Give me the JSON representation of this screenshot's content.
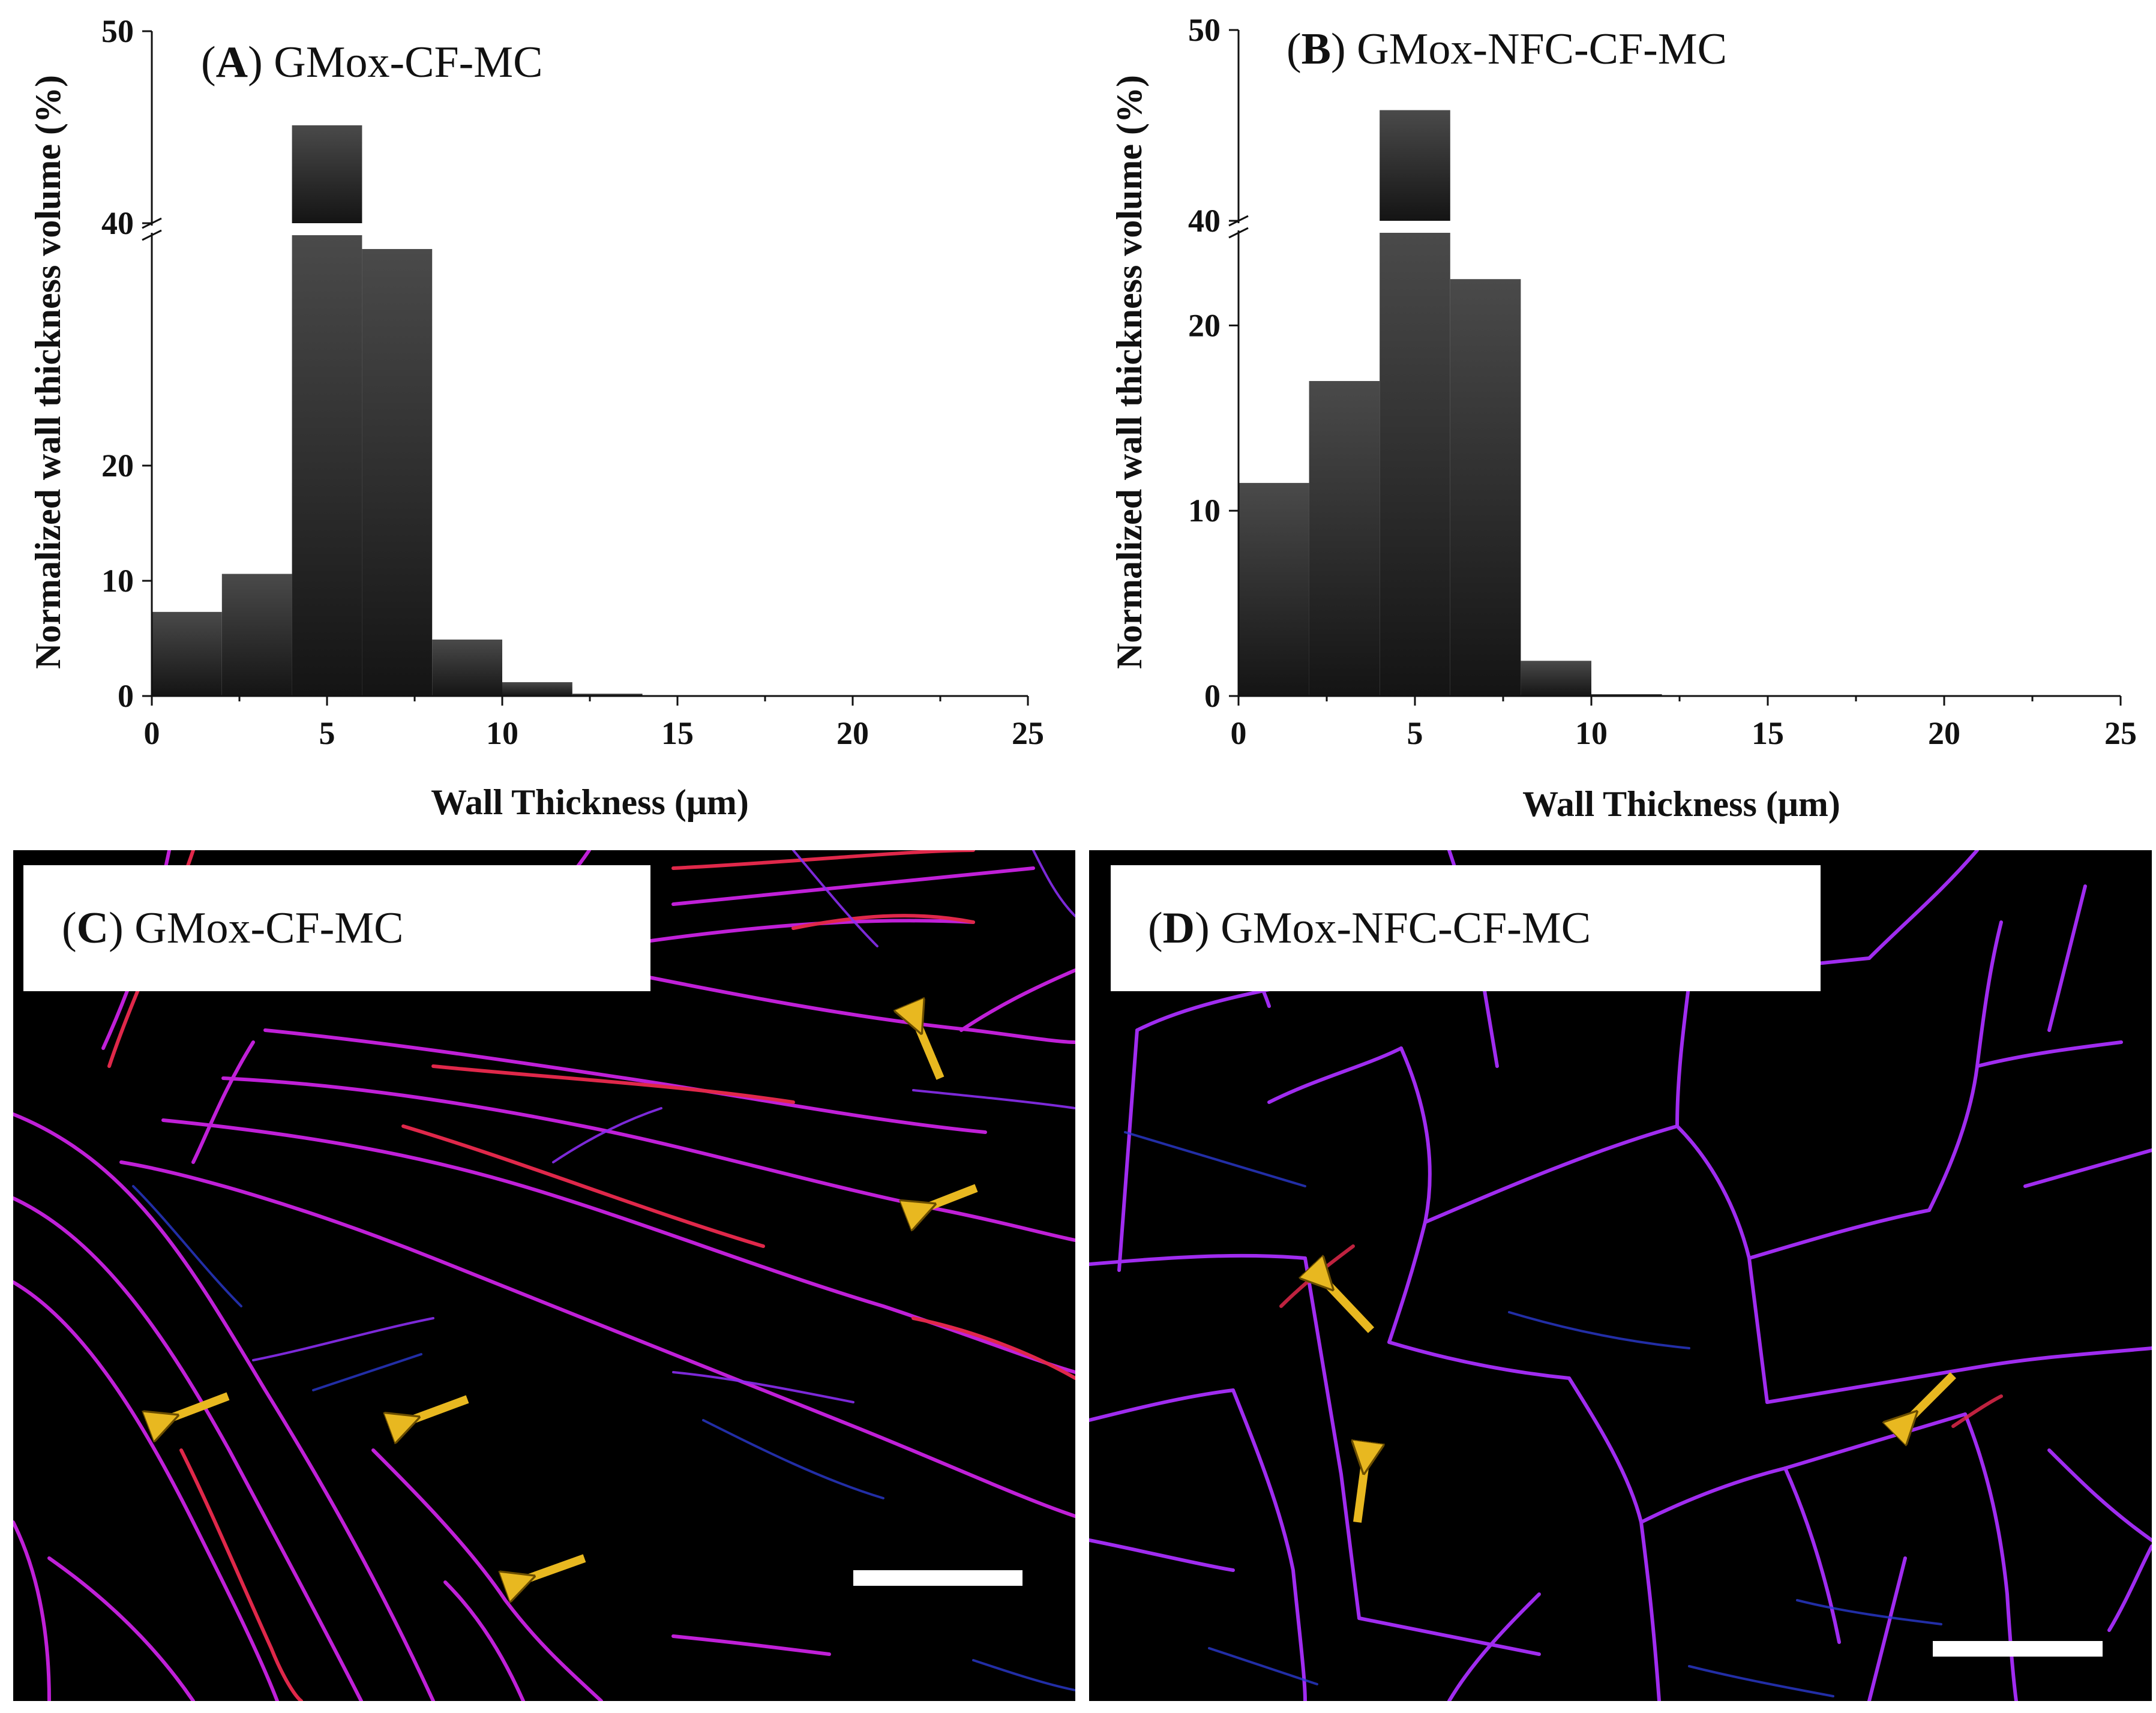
{
  "chart_data": [
    {
      "type": "bar",
      "panel": "A",
      "title": "GMox-CF-MC",
      "xlabel": "Wall Thickness (μm)",
      "ylabel": "Normalized wall thickness volume (%)",
      "xlim": [
        0,
        25
      ],
      "ylim_lower": [
        0,
        40
      ],
      "ylim_upper": [
        40,
        50
      ],
      "axis_break": true,
      "x_ticks": [
        "0",
        "5",
        "10",
        "15",
        "20",
        "25"
      ],
      "y_ticks_lower": [
        "0",
        "10",
        "20"
      ],
      "y_ticks_upper": [
        "40",
        "50"
      ],
      "bins": [
        [
          0,
          2
        ],
        [
          2,
          4
        ],
        [
          4,
          6
        ],
        [
          6,
          8
        ],
        [
          8,
          10
        ],
        [
          10,
          12
        ],
        [
          12,
          14
        ]
      ],
      "values": [
        7.3,
        10.6,
        45.1,
        38.8,
        4.9,
        1.2,
        0.2
      ]
    },
    {
      "type": "bar",
      "panel": "B",
      "title": "GMox-NFC-CF-MC",
      "xlabel": "Wall Thickness (μm)",
      "ylabel": "Normalized wall thickness volume (%)",
      "xlim": [
        0,
        25
      ],
      "ylim_lower": [
        0,
        25
      ],
      "ylim_upper": [
        40,
        50
      ],
      "axis_break": true,
      "x_ticks": [
        "0",
        "5",
        "10",
        "15",
        "20",
        "25"
      ],
      "y_ticks_lower": [
        "0",
        "10",
        "20"
      ],
      "y_ticks_upper": [
        "40",
        "50"
      ],
      "bins": [
        [
          0,
          2
        ],
        [
          2,
          4
        ],
        [
          4,
          6
        ],
        [
          6,
          8
        ],
        [
          8,
          10
        ],
        [
          10,
          12
        ]
      ],
      "values": [
        11.5,
        17.0,
        45.8,
        22.5,
        1.9,
        0.1
      ]
    }
  ],
  "panels": {
    "A": {
      "letter": "A",
      "name": "GMox-CF-MC"
    },
    "B": {
      "letter": "B",
      "name": "GMox-NFC-CF-MC"
    },
    "C": {
      "letter": "C",
      "name": "GMox-CF-MC"
    },
    "D": {
      "letter": "D",
      "name": "GMox-NFC-CF-MC"
    }
  },
  "colors": {
    "bar": "#2c2c2c",
    "fiber_magenta": "#c020d8",
    "fiber_red": "#e0284a",
    "fiber_violet": "#8a2ef0",
    "fiber_blue": "#2a3ad0",
    "arrow": "#e8b820"
  }
}
